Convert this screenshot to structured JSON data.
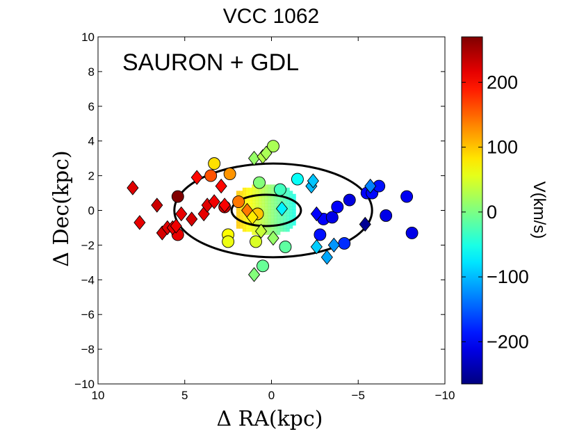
{
  "chart_data": {
    "type": "scatter",
    "title": "VCC 1062",
    "annotation": "SAURON + GDL",
    "xlabel": "Δ RA(kpc)",
    "ylabel": "Δ Dec(kpc)",
    "xlim": [
      10,
      -10
    ],
    "ylim": [
      -10,
      10
    ],
    "x_ticks": [
      10,
      5,
      0,
      -5,
      -10
    ],
    "y_ticks": [
      10,
      8,
      6,
      4,
      2,
      0,
      -2,
      -4,
      -6,
      -8,
      -10
    ],
    "colorbar": {
      "label": "V(km/s)",
      "range": [
        -265,
        270
      ],
      "ticks": [
        200,
        100,
        0,
        -100,
        -200
      ],
      "tick_labels": [
        "200",
        "100",
        "0",
        "−100",
        "−200"
      ],
      "colormap": "jet"
    },
    "ellipses": [
      {
        "center": [
          -0.1,
          0
        ],
        "semi_major": 5.7,
        "semi_minor": 2.7,
        "angle_deg": 0
      },
      {
        "center": [
          0.3,
          0
        ],
        "semi_major": 2.0,
        "semi_minor": 0.9,
        "angle_deg": 0
      }
    ],
    "sauron_field": {
      "x": [
        -1.3,
        2.0
      ],
      "y": [
        -1.3,
        1.4
      ],
      "velocity_center": 60,
      "velocity_edge": -50
    },
    "series": [
      {
        "name": "circles",
        "marker": "circle",
        "points": [
          {
            "x": 5.4,
            "y": 0.8,
            "v": 270
          },
          {
            "x": 2.7,
            "y": 0.2,
            "v": 230
          },
          {
            "x": 3.5,
            "y": 2.0,
            "v": 160
          },
          {
            "x": 5.4,
            "y": -1.4,
            "v": 215
          },
          {
            "x": 2.5,
            "y": -1.4,
            "v": 70
          },
          {
            "x": 2.4,
            "y": 2.1,
            "v": 125
          },
          {
            "x": 3.3,
            "y": 2.7,
            "v": 85
          },
          {
            "x": 1.9,
            "y": 0.5,
            "v": 140
          },
          {
            "x": 2.5,
            "y": -1.8,
            "v": 60
          },
          {
            "x": 0.9,
            "y": -1.8,
            "v": 50
          },
          {
            "x": 0.8,
            "y": -0.2,
            "v": 100
          },
          {
            "x": 0.7,
            "y": 1.6,
            "v": 5
          },
          {
            "x": -0.1,
            "y": 3.7,
            "v": 25
          },
          {
            "x": 0.5,
            "y": -3.2,
            "v": -10
          },
          {
            "x": -0.5,
            "y": 1.2,
            "v": -30
          },
          {
            "x": -1.5,
            "y": 1.8,
            "v": -60
          },
          {
            "x": -0.8,
            "y": -2.1,
            "v": -15
          },
          {
            "x": -2.8,
            "y": -1.4,
            "v": -190
          },
          {
            "x": -3.0,
            "y": -0.5,
            "v": -200
          },
          {
            "x": -3.5,
            "y": -0.4,
            "v": -210
          },
          {
            "x": -3.8,
            "y": 0.2,
            "v": -200
          },
          {
            "x": -4.2,
            "y": -1.9,
            "v": -175
          },
          {
            "x": -4.5,
            "y": 0.6,
            "v": -215
          },
          {
            "x": -5.5,
            "y": 1.0,
            "v": -200
          },
          {
            "x": -5.8,
            "y": 1.0,
            "v": -195
          },
          {
            "x": -6.2,
            "y": 1.4,
            "v": -190
          },
          {
            "x": -6.6,
            "y": -0.3,
            "v": -210
          },
          {
            "x": -7.8,
            "y": 0.8,
            "v": -205
          },
          {
            "x": -8.1,
            "y": -1.3,
            "v": -210
          }
        ]
      },
      {
        "name": "diamonds",
        "marker": "diamond",
        "points": [
          {
            "x": 8.0,
            "y": 1.3,
            "v": 220
          },
          {
            "x": 7.6,
            "y": -0.7,
            "v": 215
          },
          {
            "x": 6.6,
            "y": 0.3,
            "v": 230
          },
          {
            "x": 6.3,
            "y": -1.3,
            "v": 225
          },
          {
            "x": 6.0,
            "y": -1.0,
            "v": 220
          },
          {
            "x": 5.7,
            "y": -1.0,
            "v": 215
          },
          {
            "x": 5.5,
            "y": -0.9,
            "v": 210
          },
          {
            "x": 5.2,
            "y": -0.2,
            "v": 215
          },
          {
            "x": 4.6,
            "y": -0.5,
            "v": 225
          },
          {
            "x": 4.3,
            "y": 1.9,
            "v": 200
          },
          {
            "x": 3.9,
            "y": -0.2,
            "v": 215
          },
          {
            "x": 3.7,
            "y": 0.3,
            "v": 220
          },
          {
            "x": 3.3,
            "y": 0.5,
            "v": 210
          },
          {
            "x": 2.9,
            "y": 1.4,
            "v": 200
          },
          {
            "x": 2.7,
            "y": 0.3,
            "v": 205
          },
          {
            "x": 1.4,
            "y": 0.0,
            "v": 140
          },
          {
            "x": 1.1,
            "y": -0.4,
            "v": 80
          },
          {
            "x": 1.0,
            "y": 3.0,
            "v": 15
          },
          {
            "x": 0.6,
            "y": -1.2,
            "v": 40
          },
          {
            "x": 0.5,
            "y": 3.1,
            "v": 30
          },
          {
            "x": 0.3,
            "y": 3.3,
            "v": 25
          },
          {
            "x": -0.1,
            "y": -1.6,
            "v": 15
          },
          {
            "x": 1.0,
            "y": -3.7,
            "v": 5
          },
          {
            "x": -0.6,
            "y": 0.1,
            "v": -70
          },
          {
            "x": -2.3,
            "y": 1.4,
            "v": -100
          },
          {
            "x": -2.4,
            "y": 1.7,
            "v": -95
          },
          {
            "x": -2.6,
            "y": -0.2,
            "v": -200
          },
          {
            "x": -2.6,
            "y": -2.1,
            "v": -90
          },
          {
            "x": -3.2,
            "y": -2.7,
            "v": -110
          },
          {
            "x": -3.6,
            "y": -2.0,
            "v": -120
          },
          {
            "x": -5.4,
            "y": -0.8,
            "v": -255
          },
          {
            "x": -5.7,
            "y": 1.4,
            "v": -130
          }
        ]
      }
    ]
  }
}
